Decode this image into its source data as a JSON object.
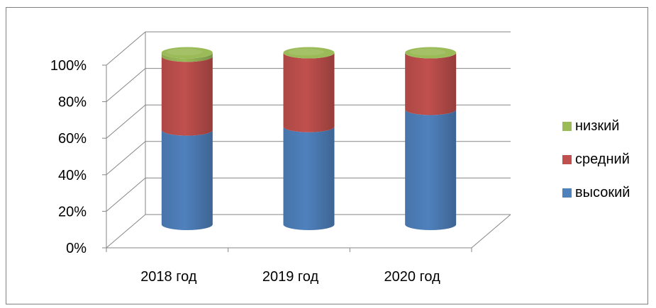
{
  "chart_data": {
    "type": "bar",
    "style": "3d-stacked-percent-cylinder",
    "categories": [
      "2018 год",
      "2019 год",
      "2020 год"
    ],
    "series": [
      {
        "name": "высокий",
        "color": "#4f81bd",
        "values": [
          55,
          57,
          67
        ]
      },
      {
        "name": "средний",
        "color": "#c0504d",
        "values": [
          43,
          43,
          33
        ]
      },
      {
        "name": "низкий",
        "color": "#9bbb59",
        "values": [
          2,
          0,
          0
        ]
      }
    ],
    "y_ticks": [
      "0%",
      "20%",
      "40%",
      "60%",
      "80%",
      "100%"
    ],
    "ylim": [
      0,
      100
    ],
    "grid": true,
    "legend_position": "right",
    "legend_order": [
      "низкий",
      "средний",
      "высокий"
    ]
  }
}
